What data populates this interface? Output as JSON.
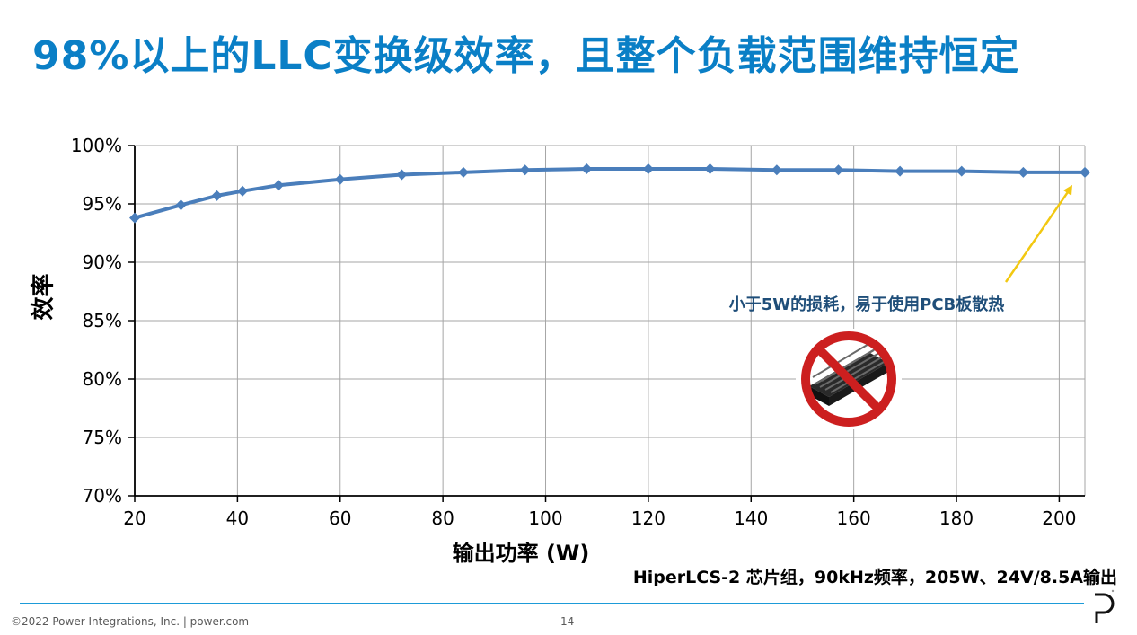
{
  "slide": {
    "title": "98%以上的LLC变换级效率，且整个负载范围维持恒定",
    "callout": "小于5W的损耗，易于使用PCB板散热",
    "spec": "HiperLCS-2 芯片组，90kHz频率，205W、24V/8.5A输出",
    "footer_copyright": "©2022 Power Integrations, Inc.  |  power.com",
    "page_number": "14",
    "icons": {
      "no_heatsink": "no-heatsink-icon",
      "logo": "power-integrations-logo-icon"
    }
  },
  "colors": {
    "title": "#0a7fc6",
    "series": "#4a7ebb",
    "arrow": "#f2c811",
    "callout": "#1f4e79",
    "prohibit": "#cc1f1f",
    "footer_line": "#1d9bd8"
  },
  "chart_data": {
    "type": "line",
    "title": "",
    "xlabel": "输出功率 (W)",
    "ylabel": "效率",
    "xlim": [
      20,
      205
    ],
    "ylim": [
      70,
      100
    ],
    "x_ticks": [
      20,
      40,
      60,
      80,
      100,
      120,
      140,
      160,
      180,
      200
    ],
    "x_tick_labels": [
      "20",
      "40",
      "60",
      "80",
      "100",
      "120",
      "140",
      "160",
      "180",
      "200"
    ],
    "y_ticks": [
      70,
      75,
      80,
      85,
      90,
      95,
      100
    ],
    "y_tick_labels": [
      "70%",
      "75%",
      "80%",
      "85%",
      "90%",
      "95%",
      "100%"
    ],
    "grid": true,
    "legend": "none",
    "series": [
      {
        "x": [
          20,
          29,
          36,
          41,
          48,
          60,
          72,
          84,
          96,
          108,
          120,
          132,
          145,
          157,
          169,
          181,
          193,
          205
        ],
        "y": [
          93.8,
          94.9,
          95.7,
          96.1,
          96.6,
          97.1,
          97.5,
          97.7,
          97.9,
          98.0,
          98.0,
          98.0,
          97.9,
          97.9,
          97.8,
          97.8,
          97.7,
          97.7
        ]
      }
    ]
  }
}
